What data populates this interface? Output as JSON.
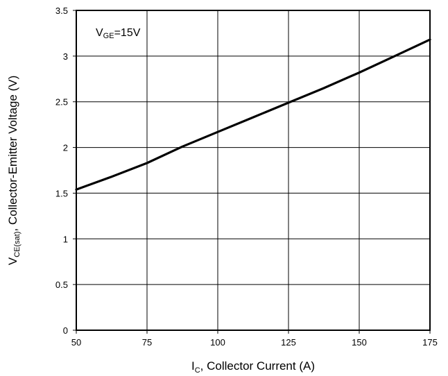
{
  "chart_data": {
    "type": "line",
    "xlabel": {
      "main": "I",
      "sub": "C",
      "rest": ", Collector Current (A)"
    },
    "ylabel": {
      "main": "V",
      "sub": "CE(sat)",
      "rest": ", Collector-Emitter Voltage (V)"
    },
    "annotation": {
      "main": "V",
      "sub": "GE",
      "rest": "=15V"
    },
    "xlim": [
      50,
      175
    ],
    "ylim": [
      0,
      3.5
    ],
    "x_ticks": [
      "50",
      "75",
      "100",
      "125",
      "150",
      "175"
    ],
    "y_ticks": [
      "0",
      "0.5",
      "1",
      "1.5",
      "2",
      "2.5",
      "3",
      "3.5"
    ],
    "grid": true,
    "series": [
      {
        "x": [
          50,
          62.5,
          75,
          87.5,
          100,
          112.5,
          125,
          137.5,
          150,
          162.5,
          175
        ],
        "y": [
          1.54,
          1.68,
          1.83,
          2.01,
          2.17,
          2.33,
          2.49,
          2.65,
          2.82,
          3.0,
          3.18
        ]
      }
    ],
    "line_color": "#000000"
  }
}
